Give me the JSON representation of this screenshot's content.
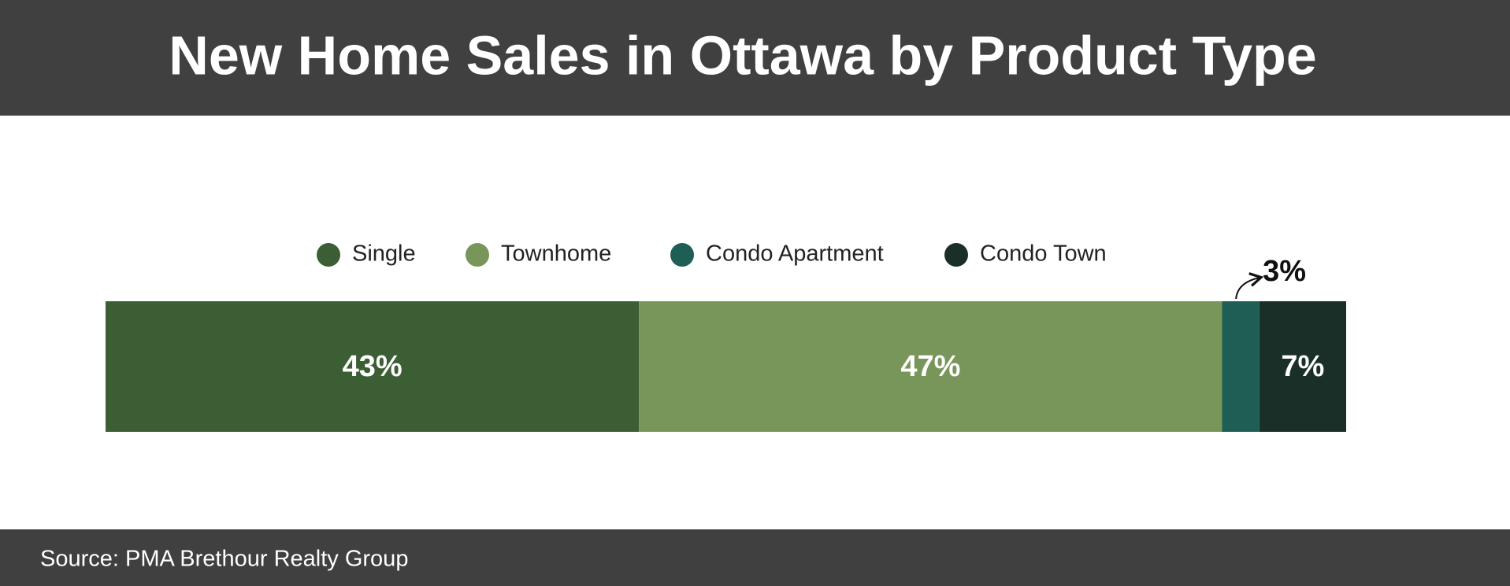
{
  "chart_data": {
    "type": "stacked-bar",
    "title": "New Home Sales in Ottawa by Product Type",
    "source": "Source: PMA Brethour Realty Group",
    "series": [
      {
        "name": "Single",
        "color": "#3b5e35",
        "values": [
          43
        ],
        "value_labels": [
          "43%"
        ]
      },
      {
        "name": "Townhome",
        "color": "#78955a",
        "values": [
          47
        ],
        "value_labels": [
          "47%"
        ]
      },
      {
        "name": "Condo Apartment",
        "color": "#1f5e55",
        "values": [
          3
        ],
        "value_labels": [
          "3%"
        ]
      },
      {
        "name": "Condo Town",
        "color": "#1a2f28",
        "values": [
          7
        ],
        "value_labels": [
          "7%"
        ]
      }
    ]
  }
}
